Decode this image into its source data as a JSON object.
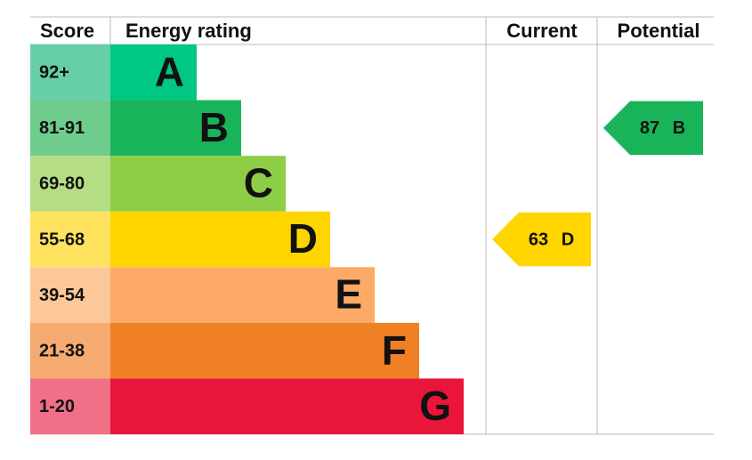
{
  "header": {
    "score": "Score",
    "energy_rating": "Energy rating",
    "current": "Current",
    "potential": "Potential"
  },
  "bands": [
    {
      "score": "92+",
      "letter": "A",
      "color": "#00c781",
      "score_color": "#66cfa6"
    },
    {
      "score": "81-91",
      "letter": "B",
      "color": "#19b459",
      "score_color": "#6ecd8c"
    },
    {
      "score": "69-80",
      "letter": "C",
      "color": "#8dce46",
      "score_color": "#b5dd86"
    },
    {
      "score": "55-68",
      "letter": "D",
      "color": "#ffd500",
      "score_color": "#ffe35e"
    },
    {
      "score": "39-54",
      "letter": "E",
      "color": "#fcaa65",
      "score_color": "#fdc899"
    },
    {
      "score": "21-38",
      "letter": "F",
      "color": "#ef8023",
      "score_color": "#f4aa70"
    },
    {
      "score": "1-20",
      "letter": "G",
      "color": "#e9153b",
      "score_color": "#f07088"
    }
  ],
  "current": {
    "value": "63",
    "letter": "D"
  },
  "potential": {
    "value": "87",
    "letter": "B"
  }
}
